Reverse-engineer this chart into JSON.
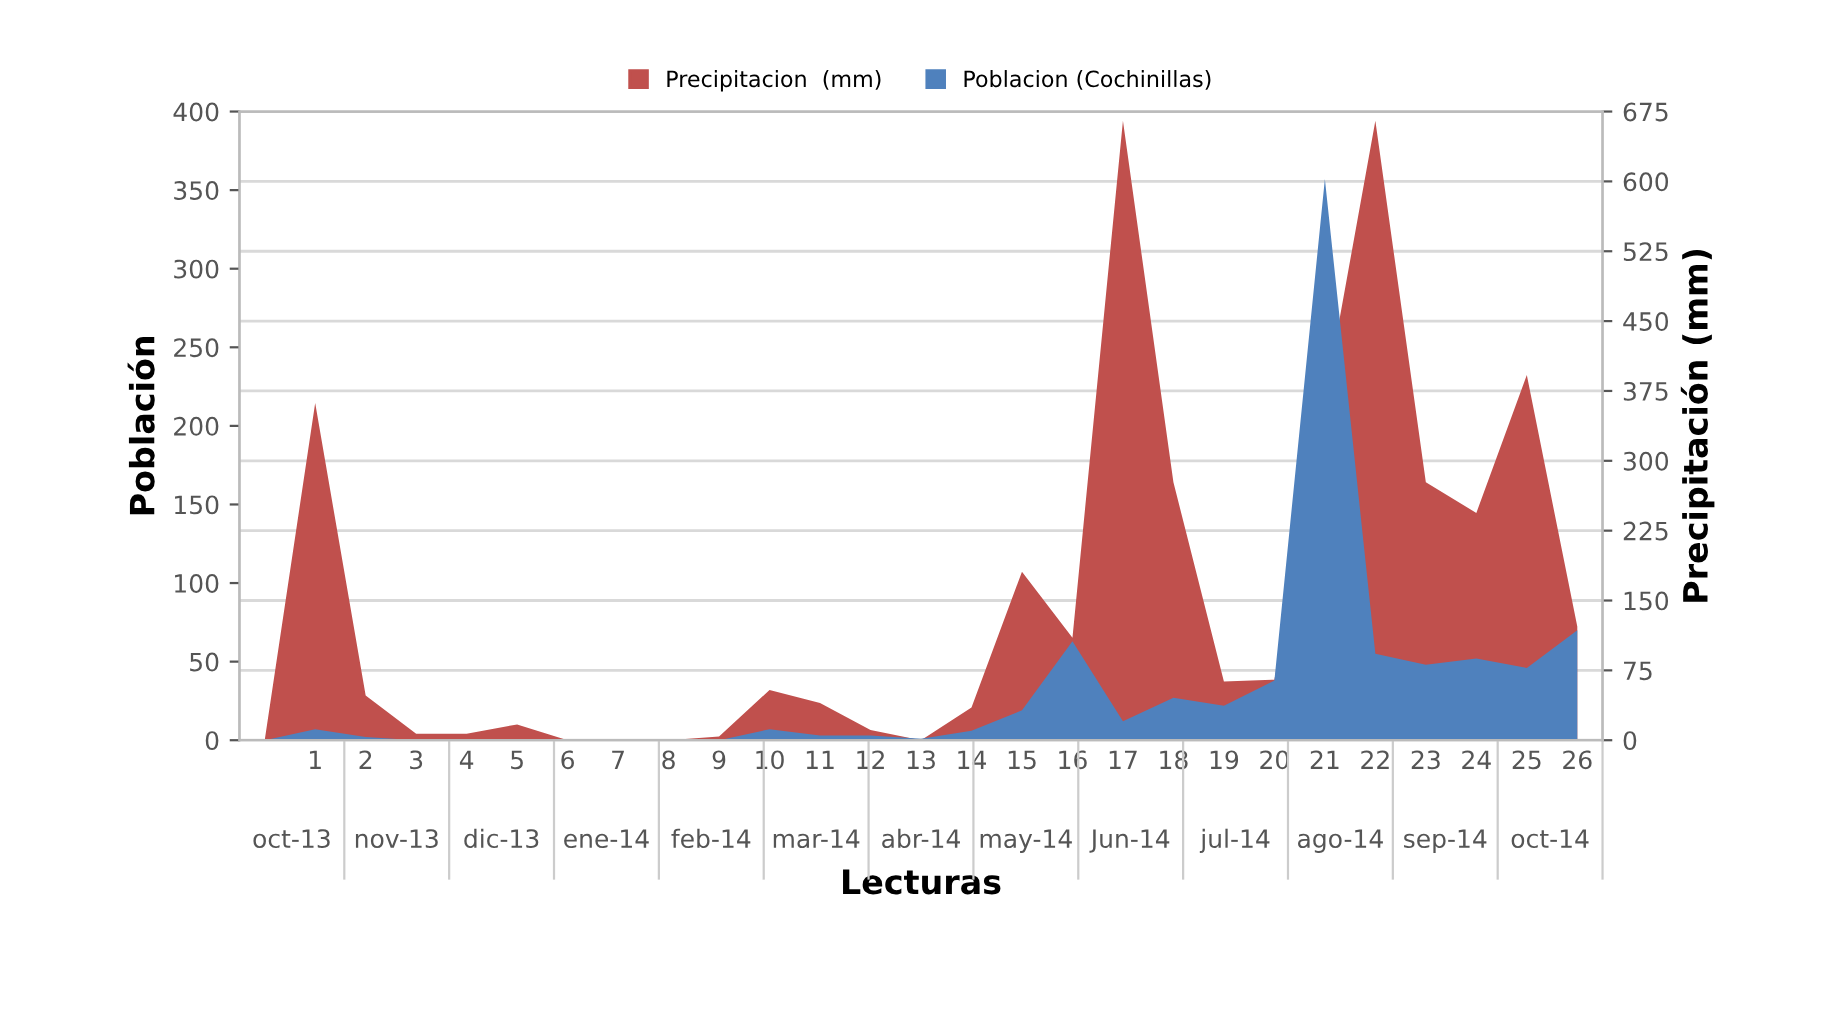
{
  "chart_data": {
    "type": "area",
    "xlabel": "Lecturas",
    "ylabel": "Población",
    "y2label": "Precipitación (mm)",
    "categories": [
      null,
      "1",
      "2",
      "3",
      "4",
      "5",
      "6",
      "7",
      "8",
      "9",
      "10",
      "11",
      "12",
      "13",
      "14",
      "15",
      "16",
      "17",
      "18",
      "19",
      "20",
      "21",
      "22",
      "23",
      "24",
      "25",
      "26"
    ],
    "series": [
      {
        "name": "Precipitacion  (mm)",
        "color": "#c0504d",
        "axis": "y2",
        "values": [
          0,
          362,
          48,
          7,
          7,
          17,
          0,
          0,
          0,
          4,
          54,
          40,
          11,
          0,
          35,
          181,
          110,
          665,
          277,
          63,
          65,
          null,
          665,
          277,
          244,
          392,
          122
        ]
      },
      {
        "name": "Poblacion (Cochinillas)",
        "color": "#4f81bd",
        "values": [
          0,
          7,
          2,
          0,
          0,
          0,
          0,
          0,
          0,
          0,
          7,
          3,
          3,
          1,
          6,
          19,
          63,
          12,
          27,
          22,
          38,
          357,
          55,
          48,
          52,
          46,
          70
        ]
      }
    ],
    "ylim": [
      0,
      400
    ],
    "yticks": [
      0,
      50,
      100,
      150,
      200,
      250,
      300,
      350,
      400
    ],
    "y2lim": [
      0,
      675
    ],
    "y2ticks": [
      0,
      75,
      150,
      225,
      300,
      375,
      450,
      525,
      600,
      675
    ],
    "grid": "y2",
    "legend": "top",
    "annotations": [
      "oct-13",
      "nov-13",
      "dic-13",
      "ene-14",
      "feb-14",
      "mar-14",
      "abr-14",
      "may-14",
      "Jun-14",
      "jul-14",
      "ago-14",
      "sep-14",
      "oct-14"
    ]
  }
}
